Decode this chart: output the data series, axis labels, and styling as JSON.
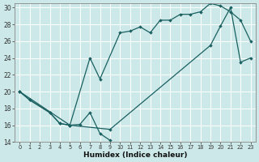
{
  "bg_color": "#cce8e8",
  "line_color": "#1a6060",
  "xlabel": "Humidex (Indice chaleur)",
  "xlim": [
    -0.5,
    23.5
  ],
  "ylim": [
    14,
    30.5
  ],
  "xticks": [
    0,
    1,
    2,
    3,
    4,
    5,
    6,
    7,
    8,
    9,
    10,
    11,
    12,
    13,
    14,
    15,
    16,
    17,
    18,
    19,
    20,
    21,
    22,
    23
  ],
  "yticks": [
    14,
    16,
    18,
    20,
    22,
    24,
    26,
    28,
    30
  ],
  "series": [
    {
      "x": [
        0,
        1,
        3,
        4,
        5,
        6,
        7,
        8,
        9
      ],
      "y": [
        20.0,
        19.0,
        17.5,
        16.2,
        16.0,
        16.1,
        17.5,
        15.0,
        14.2
      ]
    },
    {
      "x": [
        0,
        1,
        3,
        4,
        5,
        7,
        8,
        10,
        11,
        12,
        13,
        14,
        15,
        16,
        17,
        18,
        19,
        20,
        21,
        22,
        23
      ],
      "y": [
        20.0,
        19.0,
        17.5,
        16.2,
        16.0,
        24.0,
        21.5,
        27.0,
        27.2,
        27.7,
        27.0,
        28.5,
        28.5,
        29.2,
        29.2,
        29.5,
        30.5,
        30.2,
        29.5,
        28.5,
        26.0
      ]
    },
    {
      "x": [
        0,
        5,
        9,
        19,
        20,
        21,
        22,
        23
      ],
      "y": [
        20.0,
        16.0,
        15.5,
        25.5,
        27.8,
        30.0,
        23.5,
        24.0
      ]
    }
  ]
}
